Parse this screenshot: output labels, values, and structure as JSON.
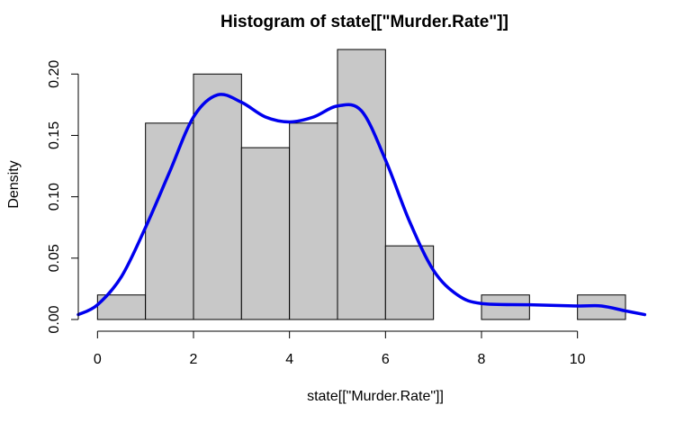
{
  "chart_data": {
    "type": "bar",
    "title": "Histogram of state[[\"Murder.Rate\"]]",
    "xlabel": "state[[\"Murder.Rate\"]]",
    "ylabel": "Density",
    "bin_edges": [
      0,
      1,
      2,
      3,
      4,
      5,
      6,
      7,
      8,
      9,
      10,
      11
    ],
    "values": [
      0.02,
      0.16,
      0.2,
      0.14,
      0.16,
      0.22,
      0.06,
      0.0,
      0.02,
      0.0,
      0.02
    ],
    "xlim": [
      -0.4,
      11.6
    ],
    "ylim": [
      0,
      0.22
    ],
    "x_ticks": [
      0,
      2,
      4,
      6,
      8,
      10
    ],
    "y_ticks": [
      0.0,
      0.05,
      0.1,
      0.15,
      0.2
    ],
    "y_tick_labels": [
      "0.00",
      "0.05",
      "0.10",
      "0.15",
      "0.20"
    ],
    "grid": false,
    "bar_fill": "#c8c8c8",
    "bar_stroke": "#000000",
    "density_color": "#0000ee",
    "density_curve": {
      "x": [
        -0.4,
        0,
        0.5,
        1.0,
        1.5,
        2.0,
        2.5,
        3.0,
        3.5,
        4.0,
        4.5,
        5.0,
        5.5,
        6.0,
        6.5,
        7.0,
        7.5,
        8.0,
        9.0,
        10.0,
        10.5,
        11.0,
        11.4
      ],
      "y": [
        0.004,
        0.012,
        0.035,
        0.075,
        0.12,
        0.165,
        0.183,
        0.177,
        0.165,
        0.161,
        0.165,
        0.174,
        0.17,
        0.13,
        0.08,
        0.04,
        0.02,
        0.013,
        0.012,
        0.011,
        0.011,
        0.007,
        0.004
      ]
    }
  }
}
